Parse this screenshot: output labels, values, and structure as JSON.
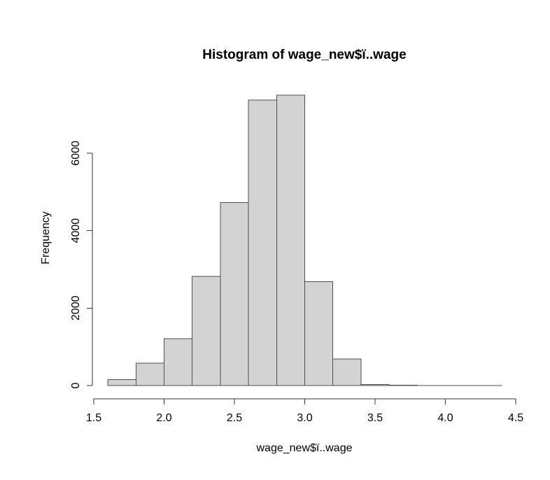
{
  "window": {
    "background_color": "#ffffff"
  },
  "chart_data": {
    "type": "bar",
    "subtype": "histogram",
    "title": "Histogram of wage_new$ï..wage",
    "xlabel": "wage_new$ï..wage",
    "ylabel": "Frequency",
    "bin_width": 0.2,
    "bins": [
      {
        "from": 1.6,
        "to": 1.8,
        "count": 150
      },
      {
        "from": 1.8,
        "to": 2.0,
        "count": 580
      },
      {
        "from": 2.0,
        "to": 2.2,
        "count": 1210
      },
      {
        "from": 2.2,
        "to": 2.4,
        "count": 2820
      },
      {
        "from": 2.4,
        "to": 2.6,
        "count": 4720
      },
      {
        "from": 2.6,
        "to": 2.8,
        "count": 7370
      },
      {
        "from": 2.8,
        "to": 3.0,
        "count": 7500
      },
      {
        "from": 3.0,
        "to": 3.2,
        "count": 2680
      },
      {
        "from": 3.2,
        "to": 3.4,
        "count": 690
      },
      {
        "from": 3.4,
        "to": 3.6,
        "count": 30
      },
      {
        "from": 3.6,
        "to": 3.8,
        "count": 10
      },
      {
        "from": 3.8,
        "to": 4.0,
        "count": 2
      },
      {
        "from": 4.0,
        "to": 4.2,
        "count": 1
      },
      {
        "from": 4.2,
        "to": 4.4,
        "count": 1
      }
    ],
    "x_ticks": [
      1.5,
      2.0,
      2.5,
      3.0,
      3.5,
      4.0,
      4.5
    ],
    "x_tick_labels": [
      "1.5",
      "2.0",
      "2.5",
      "3.0",
      "3.5",
      "4.0",
      "4.5"
    ],
    "y_ticks": [
      0,
      2000,
      4000,
      6000
    ],
    "y_tick_labels": [
      "0",
      "2000",
      "4000",
      "6000"
    ],
    "xlim": [
      1.5,
      4.5
    ],
    "ylim": [
      0,
      6000
    ],
    "grid": false,
    "legend": null,
    "colors": {
      "bar_fill": "#d3d3d3",
      "bar_border": "#4f4f4f",
      "axis": "#333333",
      "text": "#000000"
    }
  }
}
